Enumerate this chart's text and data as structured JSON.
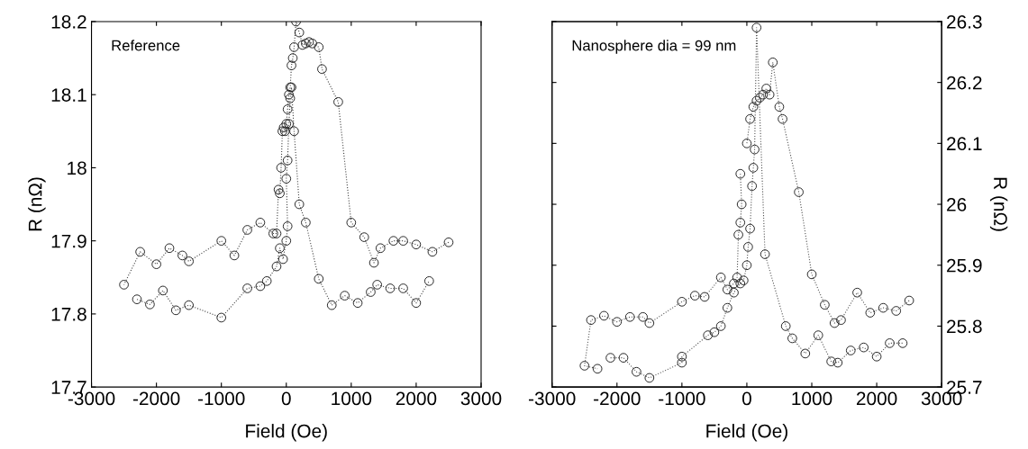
{
  "chart_data": [
    {
      "type": "line",
      "annotations": [
        "Reference"
      ],
      "xlabel": "Field (Oe)",
      "ylabel": "R (nΩ)",
      "xlim": [
        -3000,
        3000
      ],
      "xticks": [
        -3000,
        -2000,
        -1000,
        0,
        1000,
        2000,
        3000
      ],
      "ylim": [
        17.7,
        18.2
      ],
      "yticks": [
        17.7,
        17.8,
        17.9,
        18,
        18.1,
        18.2
      ],
      "marker": "circle",
      "line_style": "dotted",
      "grid": false,
      "series": [
        {
          "color": "#444444",
          "x": [
            2500,
            2250,
            2000,
            1800,
            1650,
            1450,
            1350,
            1200,
            1000,
            800,
            550,
            500,
            400,
            350,
            300,
            250,
            200,
            150,
            120,
            100,
            80,
            60,
            40,
            20,
            0,
            -20,
            -40,
            -60,
            -80,
            -100,
            -120,
            -150,
            -200,
            -400,
            -600,
            -800,
            -1000,
            -1500,
            -1600,
            -1800,
            -2000,
            -2250,
            -2500
          ],
          "values": [
            17.898,
            17.885,
            17.895,
            17.9,
            17.9,
            17.89,
            17.87,
            17.905,
            17.925,
            18.09,
            18.135,
            18.165,
            18.17,
            18.172,
            18.17,
            18.168,
            18.185,
            18.2,
            18.165,
            18.15,
            18.14,
            18.11,
            18.1,
            18.08,
            18.06,
            18.05,
            18.055,
            18.05,
            18.0,
            17.965,
            17.97,
            17.91,
            17.91,
            17.925,
            17.915,
            17.88,
            17.9,
            17.872,
            17.88,
            17.89,
            17.868,
            17.885,
            17.84
          ]
        },
        {
          "color": "#444444",
          "x": [
            -2300,
            -2100,
            -1900,
            -1700,
            -1500,
            -1000,
            -600,
            -400,
            -300,
            -150,
            -100,
            -50,
            0,
            20,
            0,
            20,
            40,
            60,
            80,
            120,
            200,
            300,
            500,
            700,
            900,
            1100,
            1300,
            1400,
            1600,
            1800,
            2000,
            2200
          ],
          "values": [
            17.82,
            17.813,
            17.832,
            17.805,
            17.812,
            17.795,
            17.835,
            17.838,
            17.845,
            17.865,
            17.89,
            17.875,
            17.9,
            17.92,
            17.985,
            18.01,
            18.06,
            18.095,
            18.11,
            18.05,
            17.95,
            17.925,
            17.848,
            17.812,
            17.825,
            17.815,
            17.83,
            17.84,
            17.835,
            17.835,
            17.815,
            17.845
          ]
        }
      ]
    },
    {
      "type": "line",
      "annotations": [
        "Nanosphere dia = 99 nm"
      ],
      "xlabel": "Field (Oe)",
      "y2label": "R (nΩ)",
      "xlim": [
        -3000,
        3000
      ],
      "xticks": [
        -3000,
        -2000,
        -1000,
        0,
        1000,
        2000,
        3000
      ],
      "y2lim": [
        25.7,
        26.3
      ],
      "y2ticks": [
        25.7,
        25.8,
        25.9,
        26,
        26.1,
        26.2,
        26.3
      ],
      "marker": "circle",
      "line_style": "dotted",
      "grid": false,
      "series": [
        {
          "color": "#555555",
          "axis": "y2",
          "x": [
            2500,
            2300,
            2100,
            1900,
            1700,
            1450,
            1350,
            1200,
            1000,
            800,
            550,
            500,
            400,
            350,
            300,
            250,
            200,
            150,
            100,
            50,
            0,
            -50,
            -100,
            -80,
            -100,
            -130,
            -150,
            -200,
            -300,
            -400,
            -650,
            -800,
            -1000,
            -1500,
            -1600,
            -1800,
            -2000,
            -2200,
            -2400,
            -2500,
            -2300
          ],
          "values": [
            25.842,
            25.825,
            25.83,
            25.822,
            25.855,
            25.81,
            25.805,
            25.835,
            25.885,
            26.02,
            26.14,
            26.16,
            26.233,
            26.18,
            26.19,
            26.18,
            26.175,
            26.17,
            26.16,
            26.14,
            26.1,
            null,
            26.05,
            26.0,
            25.97,
            25.95,
            25.88,
            25.87,
            25.86,
            25.88,
            25.848,
            25.85,
            25.84,
            25.805,
            25.815,
            25.815,
            25.807,
            25.817,
            25.81,
            25.735,
            25.73
          ]
        },
        {
          "color": "#555555",
          "axis": "y2",
          "x": [
            -2100,
            -1900,
            -1700,
            -1500,
            -1000,
            -1000,
            -600,
            -500,
            -400,
            -300,
            -200,
            -100,
            -50,
            0,
            20,
            50,
            80,
            100,
            120,
            150,
            280,
            600,
            700,
            900,
            1100,
            1300,
            1400,
            1600,
            1800,
            2000,
            2200,
            2400
          ],
          "values": [
            25.748,
            25.748,
            25.725,
            25.715,
            25.74,
            25.75,
            25.785,
            25.79,
            25.8,
            25.83,
            25.855,
            25.87,
            25.875,
            25.9,
            25.93,
            25.96,
            26.03,
            26.06,
            26.09,
            26.29,
            25.918,
            25.8,
            25.78,
            25.755,
            25.785,
            25.742,
            25.74,
            25.76,
            25.765,
            25.75,
            25.772,
            25.772
          ]
        }
      ]
    }
  ]
}
